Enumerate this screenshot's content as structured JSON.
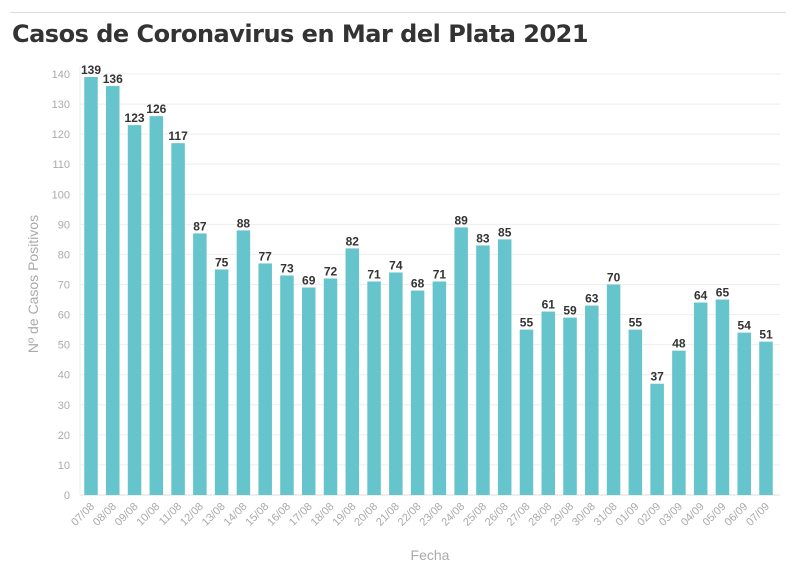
{
  "chart_data": {
    "type": "bar",
    "title": "Casos de Coronavirus en Mar del Plata 2021",
    "xlabel": "Fecha",
    "ylabel": "Nº de Casos Positivos",
    "ylim": [
      0,
      140
    ],
    "yticks": [
      0,
      10,
      20,
      30,
      40,
      50,
      60,
      70,
      80,
      90,
      100,
      110,
      120,
      130,
      140
    ],
    "grid": true,
    "bar_color": "#66c4cc",
    "categories": [
      "07/08",
      "08/08",
      "09/08",
      "10/08",
      "11/08",
      "12/08",
      "13/08",
      "14/08",
      "15/08",
      "16/08",
      "17/08",
      "18/08",
      "19/08",
      "20/08",
      "21/08",
      "22/08",
      "23/08",
      "24/08",
      "25/08",
      "26/08",
      "27/08",
      "28/08",
      "29/08",
      "30/08",
      "31/08",
      "01/09",
      "02/09",
      "03/09",
      "04/09",
      "05/09",
      "06/09",
      "07/09"
    ],
    "values": [
      139,
      136,
      123,
      126,
      117,
      87,
      75,
      88,
      77,
      73,
      69,
      72,
      82,
      71,
      74,
      68,
      71,
      89,
      83,
      85,
      55,
      61,
      59,
      63,
      70,
      55,
      37,
      48,
      64,
      65,
      54,
      51
    ]
  }
}
